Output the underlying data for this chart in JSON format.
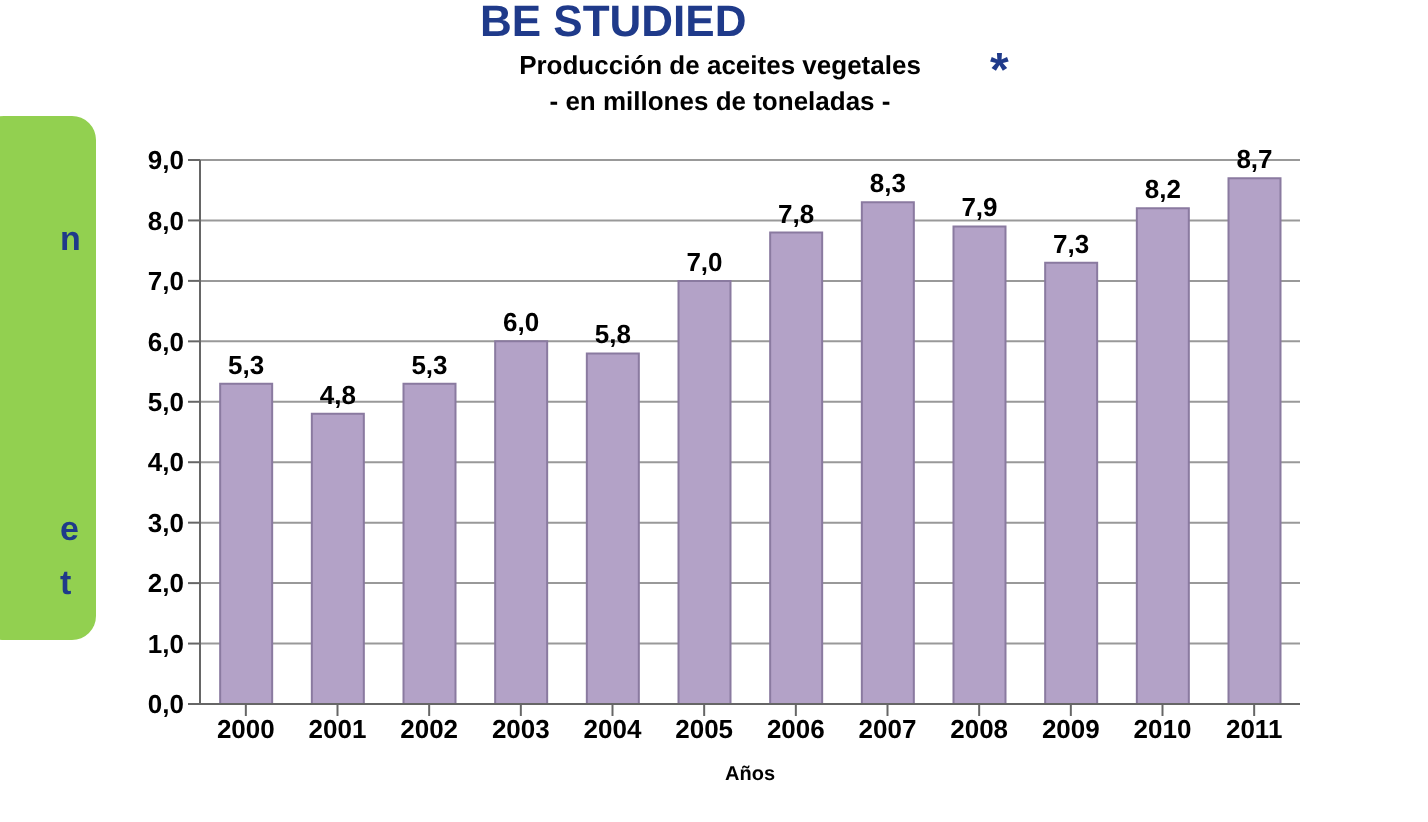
{
  "chart_data": {
    "type": "bar",
    "title": "Producción de aceites vegetales",
    "subtitle": "- en millones de toneladas -",
    "xlabel": "Años",
    "categories": [
      "2000",
      "2001",
      "2002",
      "2003",
      "2004",
      "2005",
      "2006",
      "2007",
      "2008",
      "2009",
      "2010",
      "2011"
    ],
    "values": [
      5.3,
      4.8,
      5.3,
      6.0,
      5.8,
      7.0,
      7.8,
      8.3,
      7.9,
      7.3,
      8.2,
      8.7
    ],
    "value_labels": [
      "5,3",
      "4,8",
      "5,3",
      "6,0",
      "5,8",
      "7,0",
      "7,8",
      "8,3",
      "7,9",
      "7,3",
      "8,2",
      "8,7"
    ],
    "color": "#b3a2c7",
    "ylim": [
      0,
      9
    ],
    "yticks": [
      {
        "value": 0,
        "label": "0,0"
      },
      {
        "value": 1,
        "label": "1,0"
      },
      {
        "value": 2,
        "label": "2,0"
      },
      {
        "value": 3,
        "label": "3,0"
      },
      {
        "value": 4,
        "label": "4,0"
      },
      {
        "value": 5,
        "label": "5,0"
      },
      {
        "value": 6,
        "label": "6,0"
      },
      {
        "value": 7,
        "label": "7,0"
      },
      {
        "value": 8,
        "label": "8,0"
      },
      {
        "value": 9,
        "label": "9,0"
      }
    ],
    "grid": "y",
    "legend": false,
    "annotations": [
      "BE STUDIED",
      "*",
      "n",
      "e",
      "t"
    ]
  }
}
